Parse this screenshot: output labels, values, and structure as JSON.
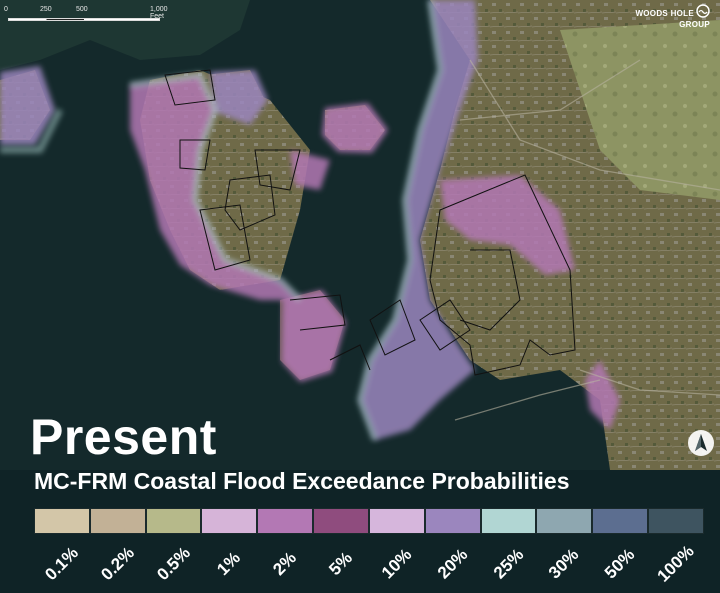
{
  "scalebar": {
    "labels": [
      "0",
      "250",
      "500",
      "1,000 Feet"
    ]
  },
  "logo": {
    "line1": "WOODS HOLE",
    "line2": "GROUP",
    "icon": "wave-logo-icon"
  },
  "north_arrow": {
    "icon": "north-arrow-icon"
  },
  "title": "Present",
  "subtitle": "MC-FRM Coastal Flood Exceedance Probabilities",
  "legend": {
    "items": [
      {
        "label": "0.1%",
        "color": "#d3c6a8"
      },
      {
        "label": "0.2%",
        "color": "#c2b196"
      },
      {
        "label": "0.5%",
        "color": "#b6b98a"
      },
      {
        "label": "1%",
        "color": "#d6b4d8"
      },
      {
        "label": "2%",
        "color": "#b378b4"
      },
      {
        "label": "5%",
        "color": "#8f4c7e"
      },
      {
        "label": "10%",
        "color": "#d6b6dc"
      },
      {
        "label": "20%",
        "color": "#9b86be"
      },
      {
        "label": "25%",
        "color": "#b1d6d3"
      },
      {
        "label": "30%",
        "color": "#8ea7b0"
      },
      {
        "label": "50%",
        "color": "#5c6e90"
      },
      {
        "label": "100%",
        "color": "#3e5460"
      }
    ]
  }
}
